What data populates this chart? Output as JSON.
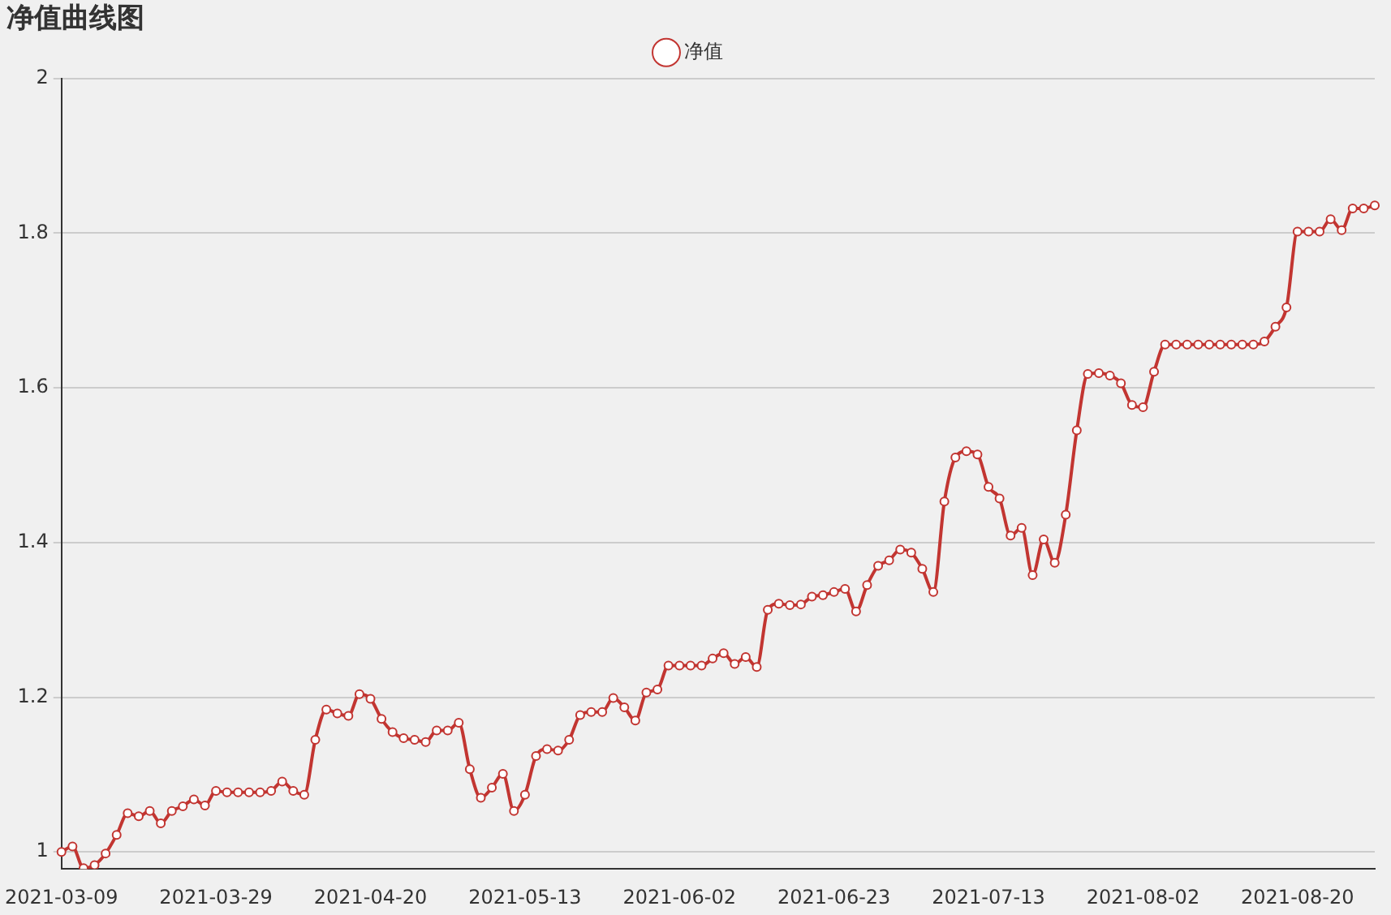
{
  "chart_data": {
    "type": "line",
    "title": "净值曲线图",
    "categories": [
      "2021-03-09",
      null,
      null,
      null,
      null,
      null,
      null,
      null,
      null,
      null,
      null,
      null,
      null,
      null,
      "2021-03-29",
      null,
      null,
      null,
      null,
      null,
      null,
      null,
      null,
      null,
      null,
      null,
      null,
      null,
      "2021-04-20",
      null,
      null,
      null,
      null,
      null,
      null,
      null,
      null,
      null,
      null,
      null,
      null,
      null,
      "2021-05-13",
      null,
      null,
      null,
      null,
      null,
      null,
      null,
      null,
      null,
      null,
      null,
      null,
      null,
      "2021-06-02",
      null,
      null,
      null,
      null,
      null,
      null,
      null,
      null,
      null,
      null,
      null,
      null,
      null,
      "2021-06-23",
      null,
      null,
      null,
      null,
      null,
      null,
      null,
      null,
      null,
      null,
      null,
      null,
      null,
      "2021-07-13",
      null,
      null,
      null,
      null,
      null,
      null,
      null,
      null,
      null,
      null,
      null,
      null,
      null,
      "2021-08-02",
      null,
      null,
      null,
      null,
      null,
      null,
      null,
      null,
      null,
      null,
      null,
      null,
      null,
      "2021-08-20",
      null,
      null,
      null,
      null,
      null,
      null,
      null
    ],
    "series": [
      {
        "name": "净值",
        "color": "#c23531",
        "values": [
          1.0,
          1.007,
          0.979,
          0.983,
          0.998,
          1.022,
          1.05,
          1.046,
          1.053,
          1.037,
          1.053,
          1.059,
          1.068,
          1.06,
          1.079,
          1.077,
          1.077,
          1.077,
          1.077,
          1.079,
          1.091,
          1.079,
          1.074,
          1.145,
          1.184,
          1.179,
          1.176,
          1.204,
          1.198,
          1.172,
          1.155,
          1.147,
          1.145,
          1.142,
          1.157,
          1.157,
          1.167,
          1.107,
          1.07,
          1.083,
          1.101,
          1.053,
          1.074,
          1.124,
          1.133,
          1.131,
          1.145,
          1.177,
          1.181,
          1.181,
          1.199,
          1.187,
          1.17,
          1.206,
          1.21,
          1.241,
          1.241,
          1.241,
          1.241,
          1.25,
          1.257,
          1.243,
          1.252,
          1.239,
          1.313,
          1.321,
          1.319,
          1.32,
          1.33,
          1.332,
          1.336,
          1.34,
          1.311,
          1.345,
          1.37,
          1.377,
          1.391,
          1.387,
          1.366,
          1.336,
          1.453,
          1.51,
          1.518,
          1.514,
          1.472,
          1.457,
          1.409,
          1.419,
          1.358,
          1.404,
          1.374,
          1.436,
          1.545,
          1.618,
          1.619,
          1.616,
          1.606,
          1.578,
          1.575,
          1.621,
          1.656,
          1.656,
          1.656,
          1.656,
          1.656,
          1.656,
          1.656,
          1.656,
          1.656,
          1.66,
          1.679,
          1.704,
          1.802,
          1.802,
          1.802,
          1.818,
          1.804,
          1.832,
          1.832,
          1.836
        ]
      }
    ],
    "ylim": [
      0.978,
      2
    ],
    "yticks": [
      1,
      1.2,
      1.4,
      1.6,
      1.8,
      2
    ],
    "grid": "y",
    "legend": "top",
    "marker": "circle",
    "line_style": "solid"
  }
}
